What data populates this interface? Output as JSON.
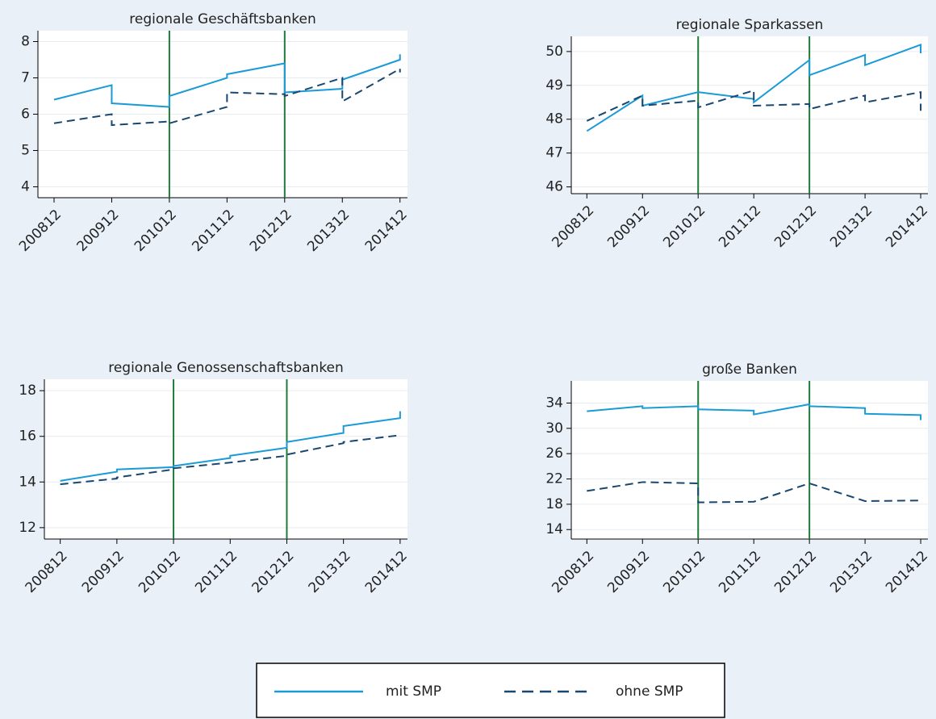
{
  "chart_data": [
    {
      "type": "line",
      "title": "regionale Geschäftsbanken",
      "xlim": [
        200784,
        201425
      ],
      "xticks": [
        200812,
        200912,
        201012,
        201112,
        201212,
        201312,
        201412
      ],
      "ylim": [
        3.7,
        8.3
      ],
      "yticks": [
        4,
        5,
        6,
        7,
        8
      ],
      "grid": true,
      "vlines": [
        201012,
        201212
      ],
      "vline_color": "#1e7b3a",
      "series": [
        {
          "name": "mit SMP",
          "color": "#1a9bd7",
          "dash": false,
          "x": [
            200812,
            200912,
            200912,
            201012,
            201012,
            201112,
            201112,
            201212,
            201212,
            201312,
            201312,
            201412,
            201412
          ],
          "values": [
            6.4,
            6.8,
            6.3,
            6.2,
            6.5,
            7.0,
            7.1,
            7.4,
            6.6,
            6.7,
            6.95,
            7.5,
            7.65
          ]
        },
        {
          "name": "ohne SMP",
          "color": "#1a476f",
          "dash": true,
          "x": [
            200812,
            200912,
            200912,
            201012,
            201012,
            201112,
            201112,
            201212,
            201212,
            201312,
            201312,
            201412,
            201412
          ],
          "values": [
            5.75,
            6.0,
            5.7,
            5.8,
            5.75,
            6.2,
            6.6,
            6.55,
            6.5,
            7.0,
            6.35,
            7.25,
            7.15
          ]
        }
      ]
    },
    {
      "type": "line",
      "title": "regionale Sparkassen",
      "xlim": [
        200784,
        201425
      ],
      "xticks": [
        200812,
        200912,
        201012,
        201112,
        201212,
        201312,
        201412
      ],
      "ylim": [
        45.8,
        50.45
      ],
      "yticks": [
        46,
        47,
        48,
        49,
        50
      ],
      "grid": true,
      "vlines": [
        201012,
        201212
      ],
      "vline_color": "#1e7b3a",
      "series": [
        {
          "name": "mit SMP",
          "color": "#1a9bd7",
          "dash": false,
          "x": [
            200812,
            200912,
            200912,
            201012,
            201012,
            201112,
            201112,
            201212,
            201212,
            201312,
            201312,
            201412,
            201412
          ],
          "values": [
            47.65,
            48.7,
            48.4,
            48.8,
            48.8,
            48.6,
            48.5,
            49.75,
            49.3,
            49.9,
            49.6,
            50.2,
            49.95
          ]
        },
        {
          "name": "ohne SMP",
          "color": "#1a476f",
          "dash": true,
          "x": [
            200812,
            200912,
            200912,
            201012,
            201012,
            201112,
            201112,
            201212,
            201212,
            201312,
            201312,
            201412,
            201412
          ],
          "values": [
            47.95,
            48.7,
            48.4,
            48.55,
            48.35,
            48.85,
            48.4,
            48.45,
            48.3,
            48.7,
            48.5,
            48.8,
            48.25
          ]
        }
      ]
    },
    {
      "type": "line",
      "title": "regionale Genossenschaftsbanken",
      "xlim": [
        200784,
        201425
      ],
      "xticks": [
        200812,
        200912,
        201012,
        201112,
        201212,
        201312,
        201412
      ],
      "ylim": [
        11.5,
        18.5
      ],
      "yticks": [
        12,
        14,
        16,
        18
      ],
      "grid": true,
      "vlines": [
        201012,
        201212
      ],
      "vline_color": "#1e7b3a",
      "series": [
        {
          "name": "mit SMP",
          "color": "#1a9bd7",
          "dash": false,
          "x": [
            200812,
            200912,
            200912,
            201012,
            201012,
            201112,
            201112,
            201212,
            201212,
            201312,
            201312,
            201412,
            201412
          ],
          "values": [
            14.05,
            14.45,
            14.55,
            14.65,
            14.7,
            15.05,
            15.15,
            15.5,
            15.75,
            16.15,
            16.45,
            16.8,
            17.1
          ]
        },
        {
          "name": "ohne SMP",
          "color": "#1a476f",
          "dash": true,
          "x": [
            200812,
            200912,
            200912,
            201012,
            201012,
            201112,
            201112,
            201212,
            201212,
            201312,
            201312,
            201412
          ],
          "values": [
            13.9,
            14.15,
            14.2,
            14.55,
            14.6,
            14.85,
            14.85,
            15.15,
            15.2,
            15.7,
            15.75,
            16.05
          ]
        }
      ]
    },
    {
      "type": "line",
      "title": "große Banken",
      "xlim": [
        200784,
        201425
      ],
      "xticks": [
        200812,
        200912,
        201012,
        201112,
        201212,
        201312,
        201412
      ],
      "ylim": [
        12.5,
        37.5
      ],
      "yticks": [
        14,
        18,
        22,
        26,
        30,
        34
      ],
      "grid": true,
      "vlines": [
        201012,
        201212
      ],
      "vline_color": "#1e7b3a",
      "series": [
        {
          "name": "mit SMP",
          "color": "#1a9bd7",
          "dash": false,
          "x": [
            200812,
            200912,
            200912,
            201012,
            201012,
            201112,
            201112,
            201212,
            201212,
            201312,
            201312,
            201412,
            201412
          ],
          "values": [
            32.7,
            33.5,
            33.2,
            33.5,
            33.0,
            32.8,
            32.2,
            33.8,
            33.5,
            33.2,
            32.3,
            32.1,
            31.3
          ]
        },
        {
          "name": "ohne SMP",
          "color": "#1a476f",
          "dash": true,
          "x": [
            200812,
            200912,
            201012,
            201012,
            201112,
            201212,
            201312,
            201412
          ],
          "values": [
            20.1,
            21.5,
            21.3,
            18.3,
            18.4,
            21.3,
            18.5,
            18.6
          ]
        }
      ]
    }
  ]
}
